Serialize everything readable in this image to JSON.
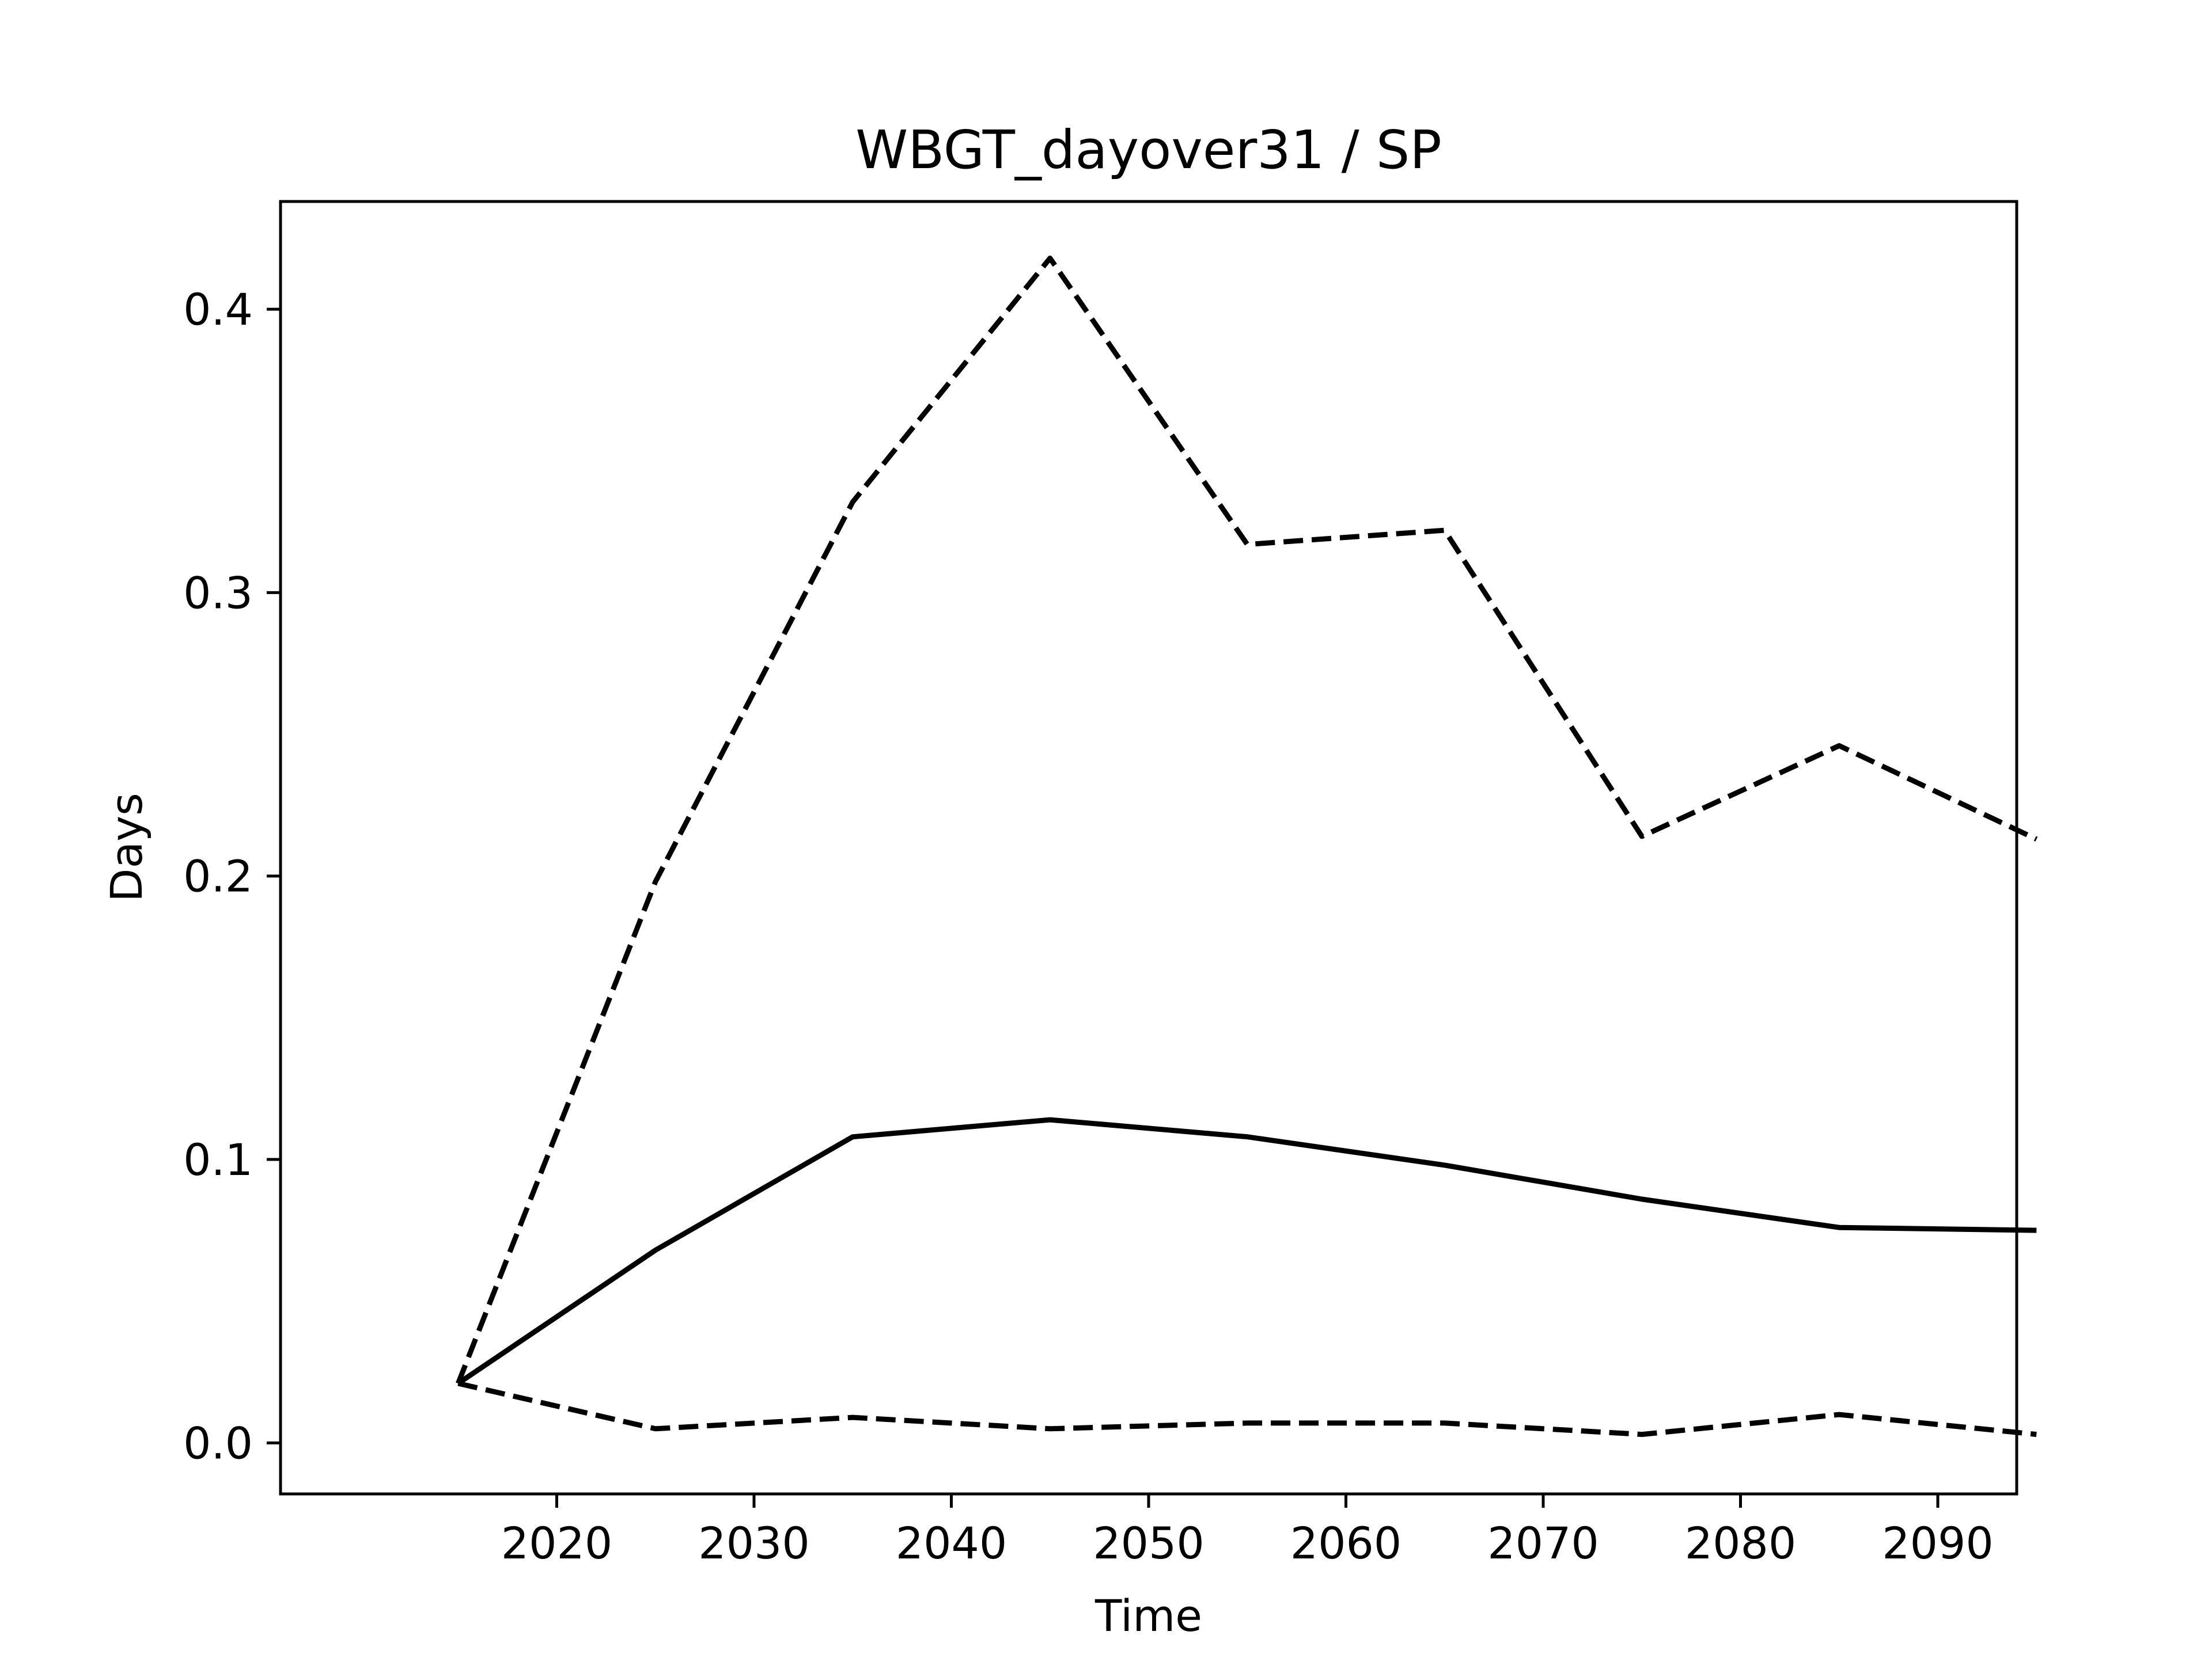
{
  "chart_data": {
    "type": "line",
    "title": "WBGT_dayover31 / SP",
    "xlabel": "Time",
    "ylabel": "Days",
    "x": [
      2015,
      2025,
      2035,
      2045,
      2055,
      2065,
      2075,
      2085,
      2095
    ],
    "xlim": [
      2006,
      2094
    ],
    "ylim": [
      -0.018,
      0.438
    ],
    "xticks": [
      2020,
      2030,
      2040,
      2050,
      2060,
      2070,
      2080,
      2090
    ],
    "yticks": [
      0.0,
      0.1,
      0.2,
      0.3,
      0.4
    ],
    "ytick_labels": [
      "0.0",
      "0.1",
      "0.2",
      "0.3",
      "0.4"
    ],
    "grid": false,
    "series": [
      {
        "style": "dashed",
        "color": "#000000",
        "values": [
          0.021,
          0.198,
          0.332,
          0.418,
          0.317,
          0.322,
          0.214,
          0.246,
          0.213
        ]
      },
      {
        "style": "solid",
        "color": "#000000",
        "values": [
          0.021,
          0.068,
          0.108,
          0.114,
          0.108,
          0.098,
          0.086,
          0.076,
          0.075
        ]
      },
      {
        "style": "dashed",
        "color": "#000000",
        "values": [
          0.021,
          0.005,
          0.009,
          0.005,
          0.007,
          0.007,
          0.003,
          0.01,
          0.003
        ]
      }
    ]
  }
}
